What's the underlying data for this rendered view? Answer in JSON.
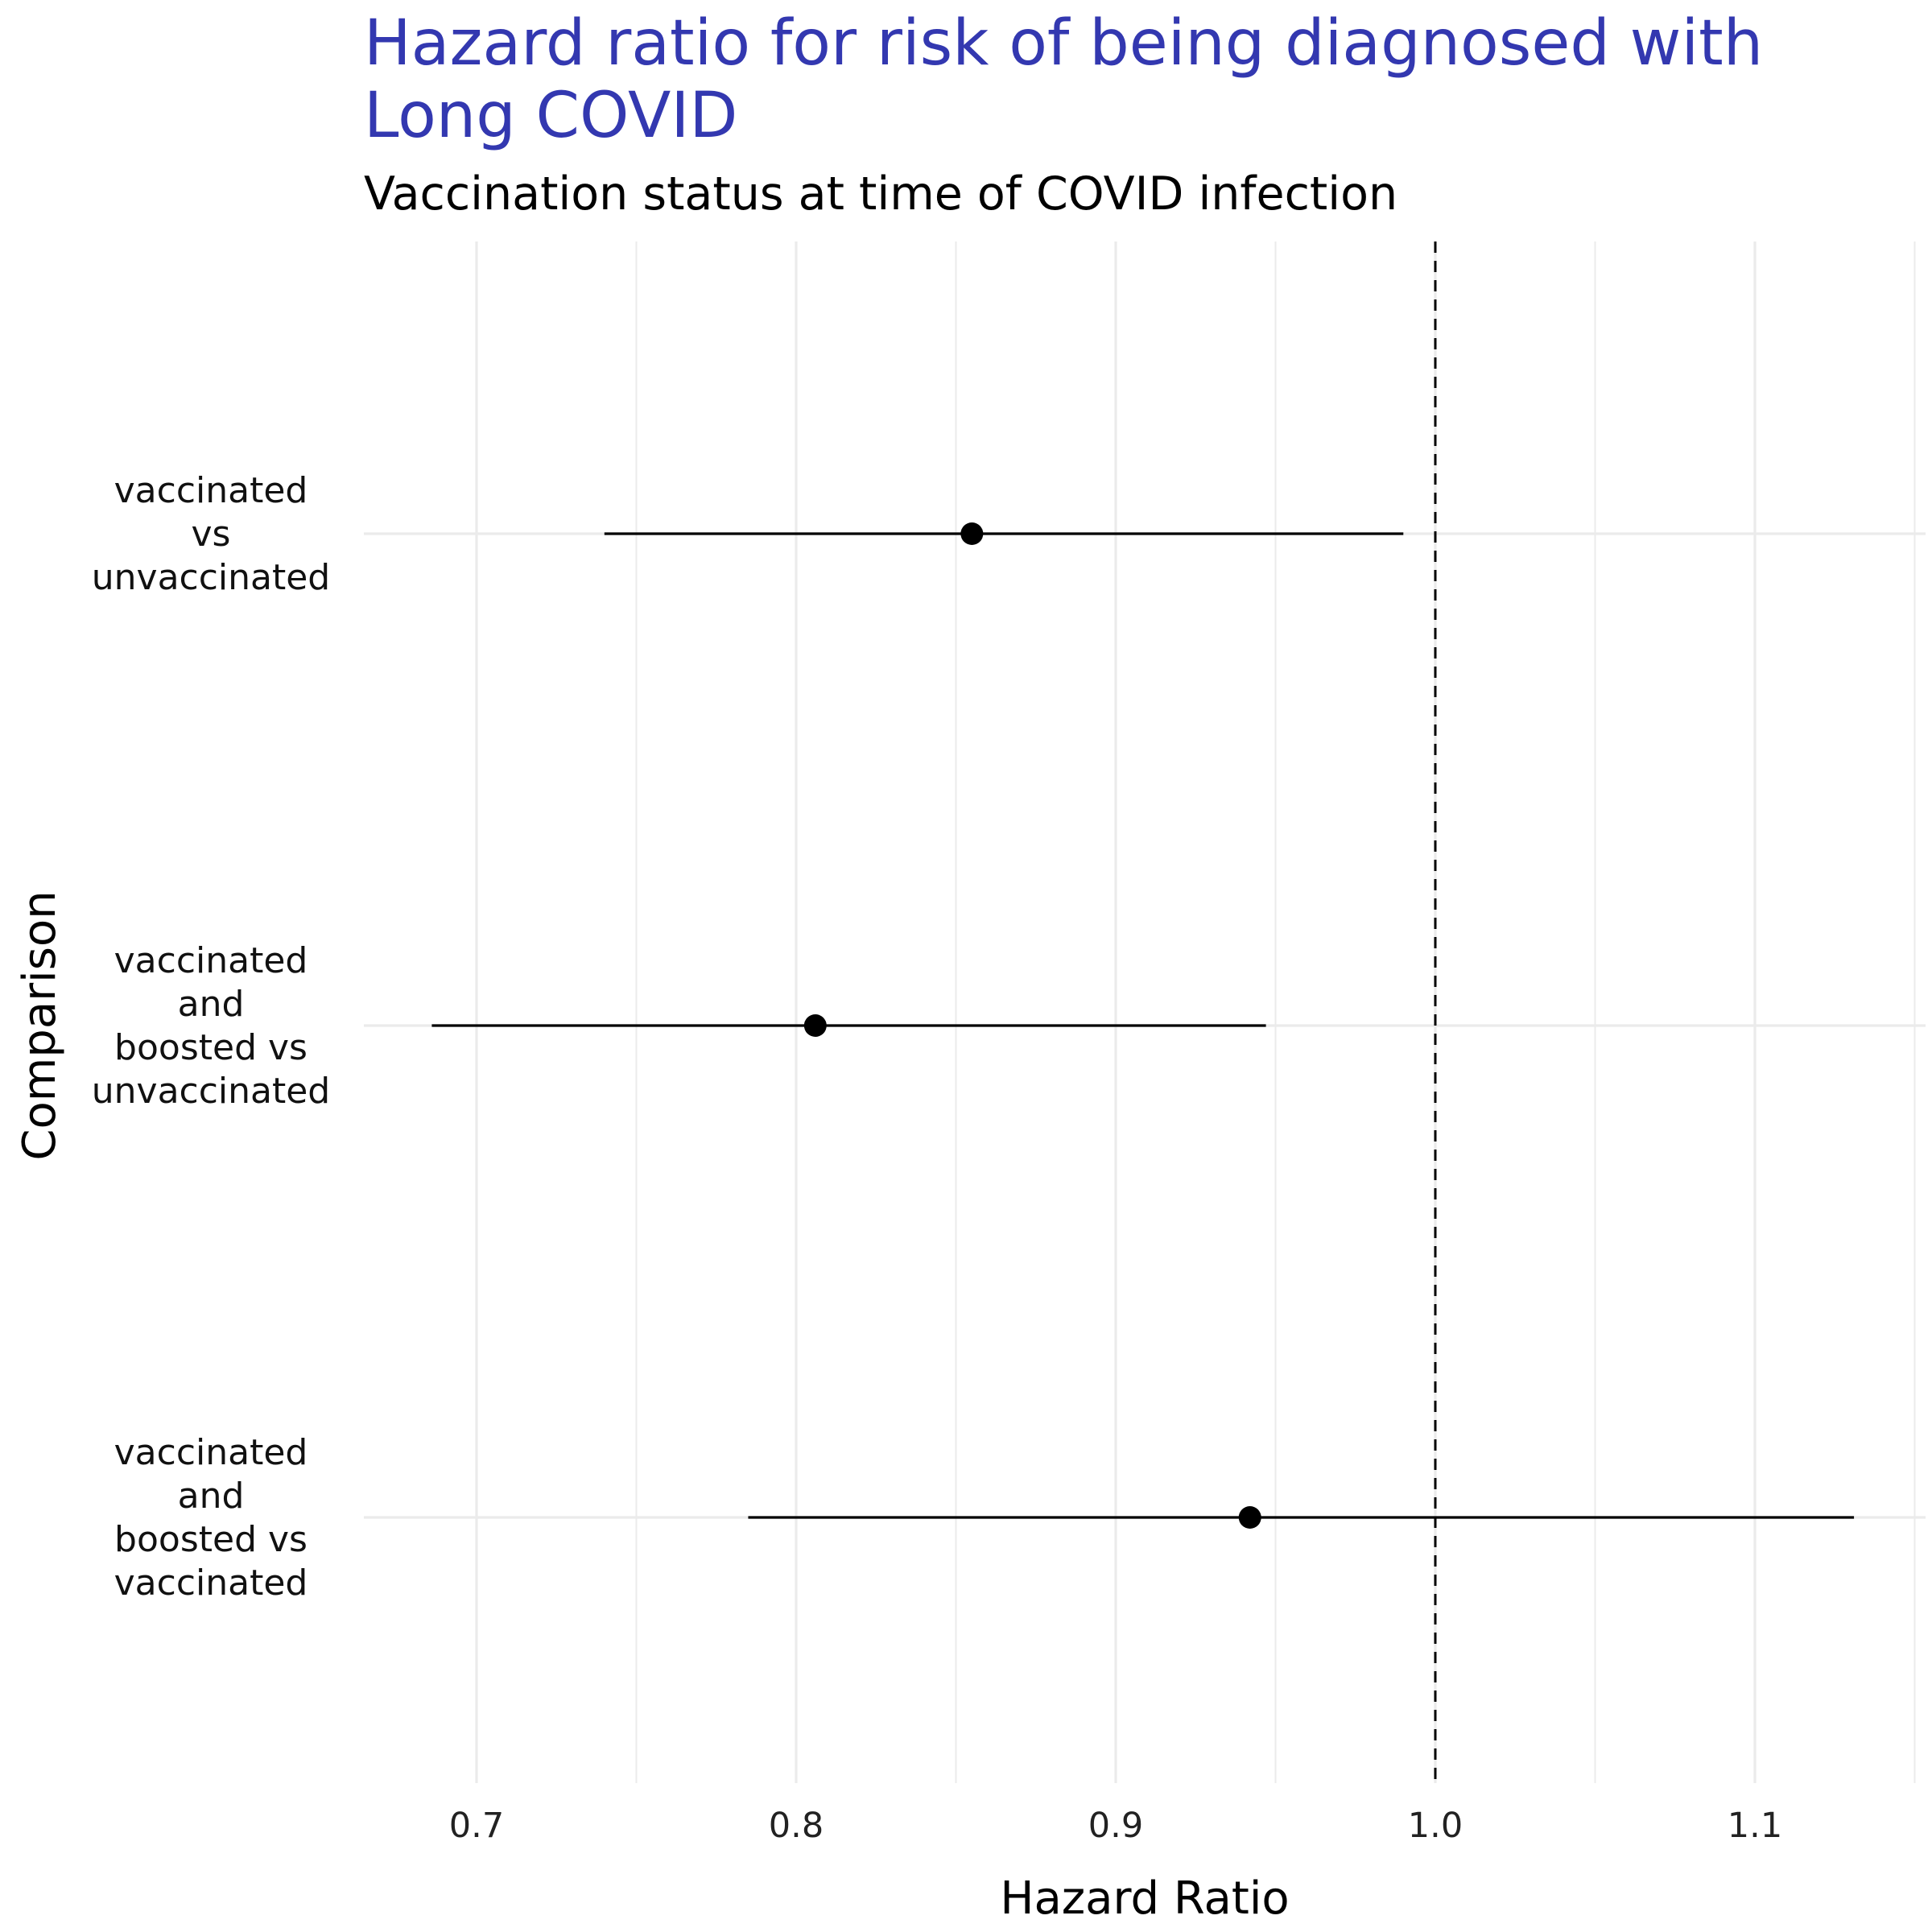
{
  "chart_data": {
    "type": "scatter",
    "subtype": "forest-plot",
    "title": "Hazard ratio for risk of being diagnosed with Long COVID",
    "title_lines": [
      "Hazard ratio for risk of being diagnosed with",
      "Long COVID"
    ],
    "subtitle": "Vaccination status at time of COVID infection",
    "xlabel": "Hazard Ratio",
    "ylabel": "Comparison",
    "xlim": [
      0.665,
      1.155
    ],
    "xticks": [
      0.7,
      0.8,
      0.9,
      1.0,
      1.1
    ],
    "xtick_labels": [
      "0.7",
      "0.8",
      "0.9",
      "1.0",
      "1.1"
    ],
    "minor_xticks": [
      0.75,
      0.85,
      0.95,
      1.05,
      1.15
    ],
    "reference_line": 1.0,
    "grid": true,
    "legend": "none",
    "rows": [
      {
        "label_lines": [
          "vaccinated",
          "vs",
          "unvaccinated"
        ],
        "estimate": 0.855,
        "ci_low": 0.74,
        "ci_high": 0.99
      },
      {
        "label_lines": [
          "vaccinated",
          "and",
          "boosted vs",
          "unvaccinated"
        ],
        "estimate": 0.806,
        "ci_low": 0.686,
        "ci_high": 0.947
      },
      {
        "label_lines": [
          "vaccinated",
          "and",
          "boosted vs",
          "vaccinated"
        ],
        "estimate": 0.942,
        "ci_low": 0.785,
        "ci_high": 1.131
      }
    ],
    "colors": {
      "title": "#3338b0",
      "point": "#000000",
      "ci_line": "#000000",
      "grid": "#ebebeb",
      "reference": "#000000"
    }
  }
}
